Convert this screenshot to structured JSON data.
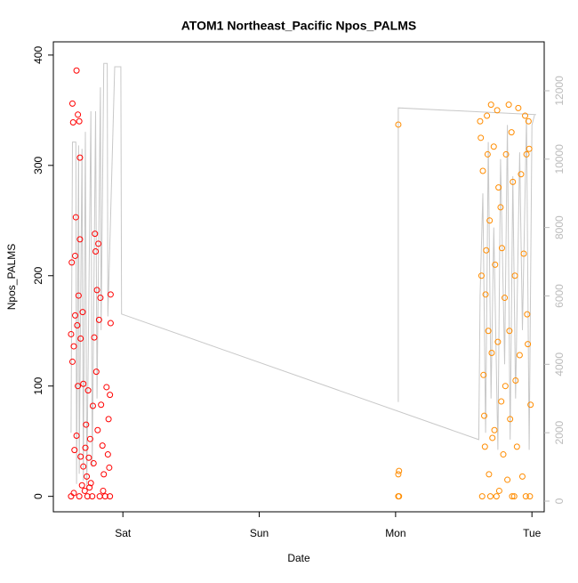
{
  "chart_data": {
    "type": "scatter",
    "title": "ATOM1 Northeast_Pacific Npos_PALMS",
    "x_label": "Date",
    "y_label": "Npos_PALMS",
    "xlim": [
      0.49,
      4.09
    ],
    "xticks": [
      {
        "value": 1,
        "label": "Sat"
      },
      {
        "value": 2,
        "label": "Sun"
      },
      {
        "value": 3,
        "label": "Mon"
      },
      {
        "value": 4,
        "label": "Tue"
      }
    ],
    "ylim": [
      -14,
      412
    ],
    "yticks": [
      0,
      100,
      200,
      300,
      400
    ],
    "y2lim": [
      -312,
      13430
    ],
    "y2ticks": [
      0,
      2000,
      4000,
      6000,
      8000,
      10000,
      12000
    ],
    "series": [
      {
        "type": "line",
        "axis": "y2",
        "color": "#c8c8c8",
        "x": [
          0.62,
          0.63,
          0.655,
          0.66,
          0.675,
          0.68,
          0.7,
          0.71,
          0.725,
          0.735,
          0.765,
          0.775,
          0.8,
          0.81,
          0.835,
          0.84,
          0.86,
          0.885,
          0.89,
          0.94,
          0.985,
          0.99,
          3.61,
          3.62,
          3.64,
          3.66,
          3.68,
          3.7,
          3.72,
          3.75,
          3.77,
          3.8,
          3.82,
          3.84,
          3.86,
          3.88,
          3.91,
          3.93,
          3.96,
          3.98,
          4.0,
          4.02,
          4.03,
          3.02,
          3.02,
          3.02
        ],
        "values": [
          2000,
          10500,
          10500,
          500,
          10400,
          800,
          10300,
          600,
          10800,
          400,
          11400,
          1000,
          11400,
          3000,
          12100,
          5000,
          12800,
          12800,
          5400,
          12700,
          12700,
          5470,
          1800,
          6000,
          9000,
          2000,
          10500,
          3000,
          8000,
          1500,
          10000,
          4000,
          11000,
          1800,
          9500,
          3000,
          10200,
          5000,
          11200,
          1500,
          11000,
          11300,
          11300,
          11500,
          7000,
          2900
        ]
      },
      {
        "type": "scatter",
        "color": "#ff0000",
        "x": [
          0.62,
          0.62,
          0.625,
          0.63,
          0.63,
          0.635,
          0.64,
          0.64,
          0.645,
          0.65,
          0.65,
          0.655,
          0.66,
          0.66,
          0.665,
          0.67,
          0.67,
          0.675,
          0.68,
          0.68,
          0.685,
          0.685,
          0.69,
          0.69,
          0.7,
          0.705,
          0.71,
          0.71,
          0.72,
          0.725,
          0.73,
          0.735,
          0.74,
          0.745,
          0.75,
          0.755,
          0.76,
          0.765,
          0.775,
          0.78,
          0.785,
          0.79,
          0.795,
          0.8,
          0.805,
          0.81,
          0.815,
          0.82,
          0.825,
          0.83,
          0.835,
          0.84,
          0.85,
          0.855,
          0.86,
          0.87,
          0.88,
          0.89,
          0.9,
          0.905,
          0.91,
          0.91,
          0.905,
          0.895
        ],
        "values": [
          0,
          147,
          212,
          122,
          356,
          339,
          136,
          3,
          42,
          218,
          164,
          253,
          386,
          55,
          155,
          100,
          346,
          182,
          340,
          0,
          307,
          233,
          36,
          143,
          10,
          167,
          102,
          27,
          5,
          44,
          65,
          18,
          0,
          96,
          35,
          8,
          52,
          12,
          0,
          82,
          30,
          144,
          238,
          222,
          113,
          187,
          60,
          229,
          160,
          0,
          180,
          83,
          46,
          5,
          20,
          0,
          99,
          38,
          26,
          92,
          183,
          157,
          0,
          70
        ]
      },
      {
        "type": "scatter",
        "color": "#ff8c00",
        "x": [
          3.02,
          3.02,
          3.025,
          3.02,
          3.025,
          3.62,
          3.625,
          3.63,
          3.635,
          3.64,
          3.645,
          3.65,
          3.655,
          3.66,
          3.665,
          3.67,
          3.675,
          3.68,
          3.685,
          3.69,
          3.695,
          3.7,
          3.705,
          3.71,
          3.72,
          3.725,
          3.73,
          3.74,
          3.745,
          3.75,
          3.755,
          3.76,
          3.77,
          3.775,
          3.78,
          3.79,
          3.8,
          3.805,
          3.81,
          3.82,
          3.83,
          3.835,
          3.84,
          3.85,
          3.855,
          3.86,
          3.87,
          3.875,
          3.88,
          3.89,
          3.9,
          3.91,
          3.92,
          3.93,
          3.94,
          3.95,
          3.955,
          3.96,
          3.965,
          3.97,
          3.975,
          3.98,
          3.985,
          3.99
        ],
        "values": [
          337,
          0,
          0,
          20,
          23,
          340,
          325,
          200,
          0,
          295,
          110,
          73,
          45,
          183,
          223,
          345,
          310,
          150,
          20,
          250,
          0,
          355,
          130,
          53,
          317,
          60,
          210,
          0,
          350,
          140,
          280,
          5,
          262,
          86,
          225,
          38,
          180,
          100,
          310,
          15,
          355,
          150,
          70,
          330,
          0,
          285,
          0,
          200,
          105,
          45,
          352,
          128,
          292,
          18,
          220,
          345,
          0,
          310,
          165,
          138,
          340,
          315,
          0,
          83
        ]
      }
    ]
  }
}
